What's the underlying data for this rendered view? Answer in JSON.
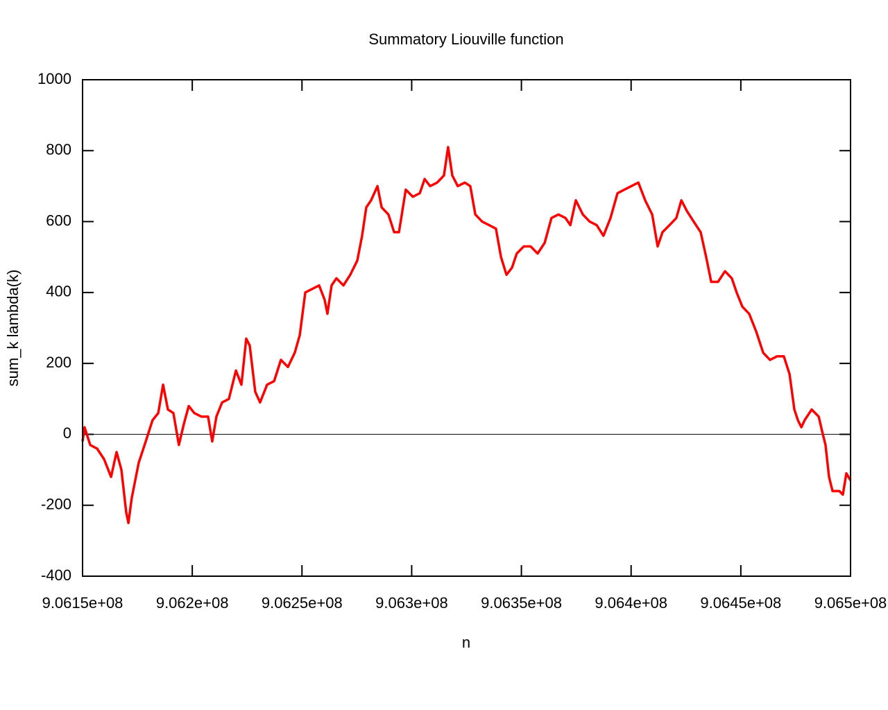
{
  "chart_data": {
    "type": "line",
    "title": "Summatory Liouville function",
    "x_label": "n",
    "y_label": "sum_k lambda(k)",
    "color": "#ff0000",
    "zeroaxis": true,
    "xlim": [
      906150000,
      906500000
    ],
    "xticks": [
      {
        "value": 906150000,
        "label": "9.0615e+08"
      },
      {
        "value": 906200000,
        "label": "9.062e+08"
      },
      {
        "value": 906250000,
        "label": "9.0625e+08"
      },
      {
        "value": 906300000,
        "label": "9.063e+08"
      },
      {
        "value": 906350000,
        "label": "9.0635e+08"
      },
      {
        "value": 906400000,
        "label": "9.064e+08"
      },
      {
        "value": 906450000,
        "label": "9.0645e+08"
      },
      {
        "value": 906500000,
        "label": "9.065e+08"
      }
    ],
    "ylim": [
      -400,
      1000
    ],
    "yticks": [
      -400,
      -200,
      0,
      200,
      400,
      600,
      800,
      1000
    ],
    "x": [
      906150000,
      906150900,
      906153500,
      906156600,
      906159800,
      906163000,
      906165500,
      906167700,
      906169900,
      906170900,
      906172400,
      906175600,
      906178800,
      906181900,
      906184500,
      906186700,
      906188900,
      906191400,
      906193900,
      906196200,
      906198400,
      906200900,
      906204100,
      906207200,
      906209100,
      906211000,
      906213600,
      906216700,
      906219900,
      906222400,
      906224600,
      906226200,
      906228700,
      906230900,
      906234100,
      906237300,
      906240400,
      906243600,
      906246700,
      906249000,
      906251500,
      906254700,
      906257800,
      906260300,
      906261600,
      906263500,
      906265700,
      906268900,
      906272000,
      906275200,
      906277400,
      906279300,
      906281500,
      906284400,
      906286300,
      906289400,
      906292000,
      906294200,
      906297300,
      906300500,
      906303700,
      906305900,
      906308400,
      906311600,
      906314700,
      906316600,
      906318500,
      906321000,
      906324200,
      906326700,
      906329000,
      906332100,
      906335300,
      906338400,
      906340700,
      906343200,
      906345700,
      906347900,
      906351100,
      906354200,
      906357400,
      906360600,
      906363700,
      906366900,
      906370100,
      906372300,
      906374800,
      906378000,
      906381100,
      906384300,
      906387400,
      906390600,
      906393800,
      906396900,
      906400100,
      906403300,
      906406400,
      906409600,
      906412100,
      906414300,
      906417500,
      906420600,
      906422900,
      906425400,
      906428500,
      906431700,
      906434200,
      906436500,
      906439600,
      906442800,
      906445900,
      906448100,
      906450700,
      906453800,
      906457000,
      906460200,
      906463300,
      906466500,
      906469600,
      906472200,
      906474400,
      906476000,
      906477600,
      906479100,
      906482300,
      906485500,
      906487000,
      906488600,
      906490200,
      906491800,
      906494900,
      906496500,
      906498100,
      906500000
    ],
    "values": [
      -20,
      20,
      -30,
      -40,
      -70,
      -120,
      -50,
      -100,
      -220,
      -250,
      -180,
      -80,
      -20,
      40,
      60,
      140,
      70,
      60,
      -30,
      30,
      80,
      60,
      50,
      50,
      -20,
      50,
      90,
      100,
      180,
      140,
      270,
      250,
      120,
      90,
      140,
      150,
      210,
      190,
      230,
      280,
      400,
      410,
      420,
      380,
      340,
      420,
      440,
      420,
      450,
      490,
      560,
      640,
      660,
      700,
      640,
      620,
      570,
      570,
      690,
      670,
      680,
      720,
      700,
      710,
      730,
      810,
      730,
      700,
      710,
      700,
      620,
      600,
      590,
      580,
      500,
      450,
      470,
      510,
      530,
      530,
      510,
      540,
      610,
      620,
      610,
      590,
      660,
      620,
      600,
      590,
      560,
      610,
      680,
      690,
      700,
      710,
      660,
      620,
      530,
      570,
      590,
      610,
      660,
      630,
      600,
      570,
      500,
      430,
      430,
      460,
      440,
      400,
      360,
      340,
      290,
      230,
      210,
      220,
      220,
      170,
      70,
      40,
      20,
      40,
      70,
      50,
      10,
      -30,
      -120,
      -160,
      -160,
      -170,
      -110,
      -130
    ]
  }
}
